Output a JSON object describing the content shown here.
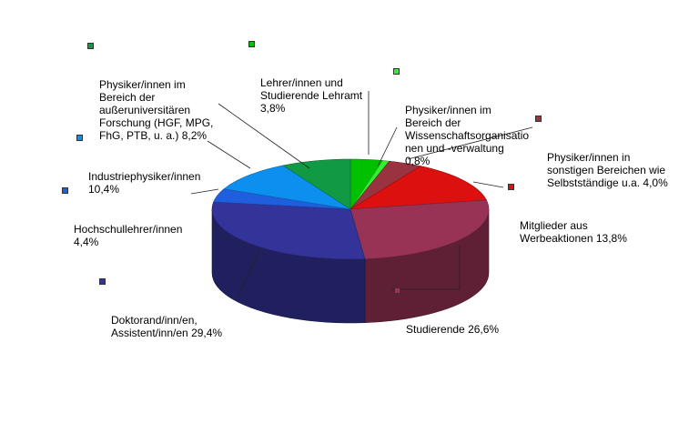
{
  "chart_data": {
    "type": "pie",
    "title": "",
    "slices": [
      {
        "label": "Lehrer/innen und\nStudierende Lehramt",
        "value_text": "3,8%",
        "value": 3.8,
        "color": "#00c000"
      },
      {
        "label": "Physiker/innen im\nBereich der\nWissenschaftsorganisatio\nnen und -verwaltung",
        "value_text": "0,8%",
        "value": 0.8,
        "color": "#33ee33"
      },
      {
        "label": "Physiker/innen in\nsonstigen Bereichen wie\nSelbstständige u.a.",
        "value_text": "4,0%",
        "value": 4.0,
        "color": "#993340"
      },
      {
        "label": "Mitglieder aus\nWerbeaktionen",
        "value_text": "13,8%",
        "value": 13.8,
        "color": "#dd1010"
      },
      {
        "label": "Studierende",
        "value_text": "26,6%",
        "value": 26.6,
        "color": "#993355"
      },
      {
        "label": "Doktorand/inn/en,\nAssistent/inn/en",
        "value_text": "29,4%",
        "value": 29.4,
        "color": "#33339a"
      },
      {
        "label": "Hochschullehrer/innen",
        "value_text": "4,4%",
        "value": 4.4,
        "color": "#1f5fdd"
      },
      {
        "label": "Industriephysiker/innen",
        "value_text": "10,4%",
        "value": 10.4,
        "color": "#0d8fef"
      },
      {
        "label": "Physiker/innen im\nBereich der\naußeruniversitären\nForschung (HGF, MPG,\nFhG, PTB, u. a.)",
        "value_text": "8,2%",
        "value": 8.2,
        "color": "#119944"
      }
    ]
  }
}
